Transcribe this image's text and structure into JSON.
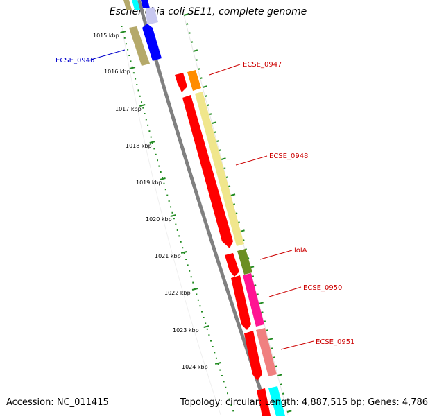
{
  "title": "Escherichia coli SE11, complete genome",
  "footer": {
    "accession": "Accession: NC_011415",
    "summary": "Topology: circular; Length: 4,887,515 bp; Genes: 4,786"
  },
  "ruler": {
    "labels": [
      "1015 kbp",
      "1016 kbp",
      "1017 kbp",
      "1018 kbp",
      "1019 kbp",
      "1020 kbp",
      "1021 kbp",
      "1022 kbp",
      "1023 kbp",
      "1024 kbp"
    ],
    "color": "#228B22"
  },
  "genes": [
    {
      "label": "ECSE_0946",
      "color": "#0000CC"
    },
    {
      "label": "ECSE_0947",
      "color": "#CC0000"
    },
    {
      "label": "ECSE_0948",
      "color": "#CC0000"
    },
    {
      "label": "lolA",
      "color": "#CC0000"
    },
    {
      "label": "ECSE_0950",
      "color": "#CC0000"
    },
    {
      "label": "ECSE_0951",
      "color": "#CC0000"
    }
  ],
  "colors": {
    "backbone": "#808080",
    "cds": "#FF0000",
    "cds_upper": "#0000FF",
    "cog_olive": "#B5A96A",
    "cog_orange": "#FF8C00",
    "cog_khaki": "#F0E68C",
    "cog_green": "#6B8E23",
    "cog_magenta": "#FF1493",
    "cog_salmon": "#F08080",
    "cog_cyan": "#00FFFF"
  }
}
